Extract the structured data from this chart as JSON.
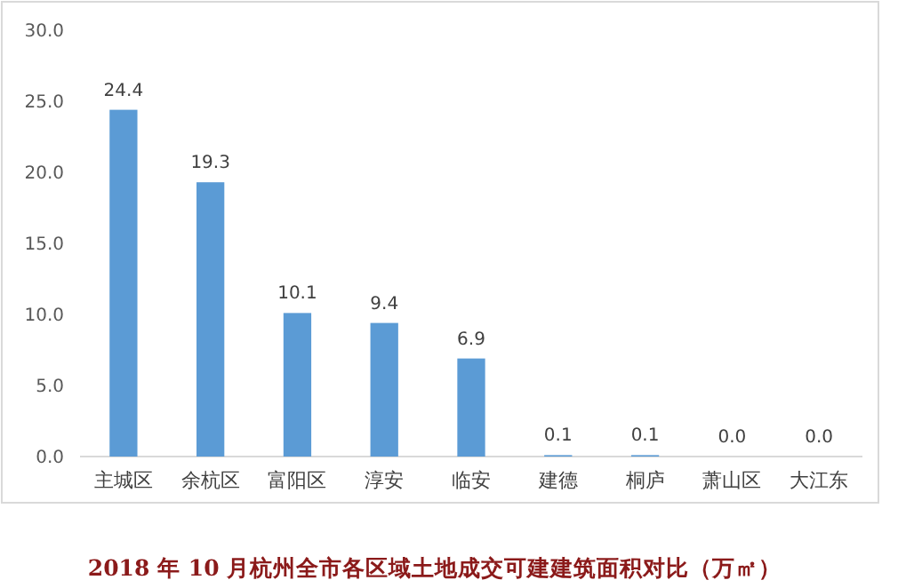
{
  "chart_data": {
    "type": "bar",
    "title": "2018 年 10 月杭州全市各区域土地成交可建建筑面积对比（万㎡）",
    "categories": [
      "主城区",
      "余杭区",
      "富阳区",
      "淳安",
      "临安",
      "建德",
      "桐庐",
      "萧山区",
      "大江东"
    ],
    "values": [
      24.4,
      19.3,
      10.1,
      9.4,
      6.9,
      0.1,
      0.1,
      0.0,
      0.0
    ],
    "value_labels": [
      "24.4",
      "19.3",
      "10.1",
      "9.4",
      "6.9",
      "0.1",
      "0.1",
      "0.0",
      "0.0"
    ],
    "color": "#5b9bd5",
    "ylim": [
      0,
      30
    ],
    "yticks": [
      {
        "value": 0,
        "label": "0.0"
      },
      {
        "value": 5,
        "label": "5.0"
      },
      {
        "value": 10,
        "label": "10.0"
      },
      {
        "value": 15,
        "label": "15.0"
      },
      {
        "value": 20,
        "label": "20.0"
      },
      {
        "value": 25,
        "label": "25.0"
      },
      {
        "value": 30,
        "label": "30.0"
      }
    ],
    "grid": false
  }
}
